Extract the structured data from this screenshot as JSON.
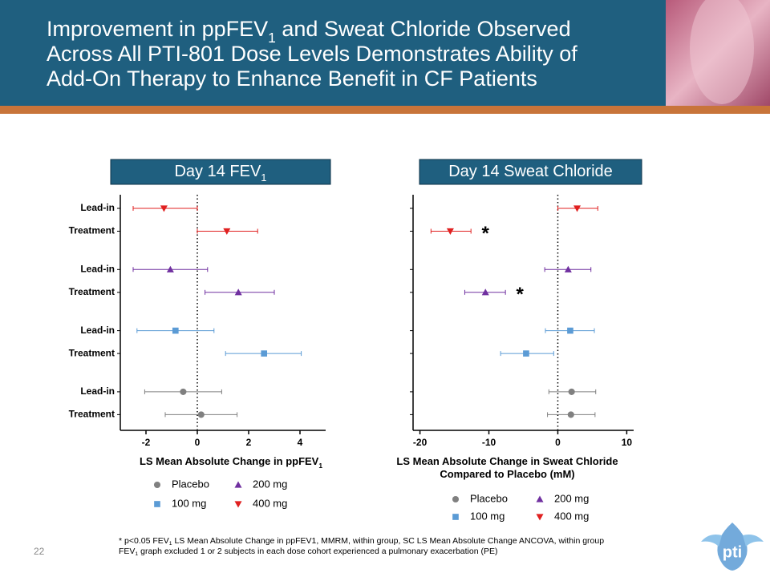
{
  "title": [
    [
      "Improvement in ppFEV",
      "1",
      " and Sweat Chloride Observed"
    ],
    [
      "Across All PTI-801 Dose Levels Demonstrates Ability of"
    ],
    [
      "Add-On Therapy to Enhance Benefit in CF Patients"
    ]
  ],
  "chart_data": [
    {
      "type": "forest",
      "header": [
        "Day 14 FEV",
        "1"
      ],
      "x_label": [
        [
          "LS Mean Absolute Change in ppFEV",
          "1"
        ]
      ],
      "categories": [
        "Lead-in",
        "Treatment",
        "Lead-in",
        "Treatment",
        "Lead-in",
        "Treatment",
        "Lead-in",
        "Treatment"
      ],
      "xlim": [
        -3,
        5
      ],
      "xticks": [
        -2,
        0,
        2,
        4
      ],
      "series": [
        {
          "name": "Placebo",
          "color": "#808080",
          "marker": "circle",
          "values": [
            null,
            null,
            null,
            null,
            null,
            null,
            -0.55,
            0.15
          ],
          "low": [
            null,
            null,
            null,
            null,
            null,
            null,
            -2.05,
            -1.25
          ],
          "high": [
            null,
            null,
            null,
            null,
            null,
            null,
            0.95,
            1.55
          ]
        },
        {
          "name": "100 mg",
          "color": "#5b9bd5",
          "marker": "square",
          "values": [
            null,
            null,
            null,
            null,
            -0.85,
            2.6,
            null,
            null
          ],
          "low": [
            null,
            null,
            null,
            null,
            -2.35,
            1.1,
            null,
            null
          ],
          "high": [
            null,
            null,
            null,
            null,
            0.65,
            4.05,
            null,
            null
          ]
        },
        {
          "name": "200 mg",
          "color": "#7030a0",
          "marker": "triangle-up",
          "values": [
            null,
            null,
            -1.05,
            1.6,
            null,
            null,
            null,
            null
          ],
          "low": [
            null,
            null,
            -2.5,
            0.3,
            null,
            null,
            null,
            null
          ],
          "high": [
            null,
            null,
            0.4,
            3.0,
            null,
            null,
            null,
            null
          ]
        },
        {
          "name": "400 mg",
          "color": "#e02020",
          "marker": "triangle-down",
          "values": [
            -1.3,
            1.15,
            null,
            null,
            null,
            null,
            null,
            null
          ],
          "low": [
            -2.5,
            0.0,
            null,
            null,
            null,
            null,
            null,
            null
          ],
          "high": [
            0.0,
            2.35,
            null,
            null,
            null,
            null,
            null,
            null
          ]
        }
      ]
    },
    {
      "type": "forest",
      "header": [
        "Day 14 Sweat Chloride"
      ],
      "x_label": [
        [
          "LS Mean Absolute Change in Sweat Chloride"
        ],
        [
          "Compared to Placebo (mM)"
        ]
      ],
      "categories": [
        null,
        null,
        null,
        null,
        null,
        null,
        null,
        null
      ],
      "xlim": [
        -21,
        11
      ],
      "xticks": [
        -20,
        -10,
        0,
        10
      ],
      "series": [
        {
          "name": "Placebo",
          "color": "#808080",
          "marker": "circle",
          "values": [
            null,
            null,
            null,
            null,
            null,
            null,
            2.0,
            1.9
          ],
          "low": [
            null,
            null,
            null,
            null,
            null,
            null,
            -1.3,
            -1.5
          ],
          "high": [
            null,
            null,
            null,
            null,
            null,
            null,
            5.5,
            5.4
          ]
        },
        {
          "name": "100 mg",
          "color": "#5b9bd5",
          "marker": "square",
          "values": [
            null,
            null,
            null,
            null,
            1.8,
            -4.6,
            null,
            null
          ],
          "low": [
            null,
            null,
            null,
            null,
            -1.8,
            -8.3,
            null,
            null
          ],
          "high": [
            null,
            null,
            null,
            null,
            5.3,
            -0.6,
            null,
            null
          ]
        },
        {
          "name": "200 mg",
          "color": "#7030a0",
          "marker": "triangle-up",
          "values": [
            null,
            null,
            1.5,
            -10.5,
            null,
            null,
            null,
            null
          ],
          "low": [
            null,
            null,
            -1.9,
            -13.5,
            null,
            null,
            null,
            null
          ],
          "high": [
            null,
            null,
            4.8,
            -7.6,
            null,
            null,
            null,
            null
          ]
        },
        {
          "name": "400 mg",
          "color": "#e02020",
          "marker": "triangle-down",
          "values": [
            2.8,
            -15.6,
            null,
            null,
            null,
            null,
            null,
            null
          ],
          "low": [
            0.0,
            -18.4,
            null,
            null,
            null,
            null,
            null,
            null
          ],
          "high": [
            5.8,
            -12.6,
            null,
            null,
            null,
            null,
            null,
            null
          ]
        }
      ],
      "annotations": [
        {
          "text": "*",
          "series": 3,
          "index": 1
        },
        {
          "text": "*",
          "series": 2,
          "index": 3
        }
      ]
    }
  ],
  "footnotes": [
    [
      "* p<0.05 FEV",
      "1",
      " LS Mean Absolute Change in ppFEV1, MMRM, within group, SC LS Mean Absolute Change ANCOVA, within group"
    ],
    [
      "FEV",
      "1",
      " graph excluded 1 or 2 subjects in each dose cohort experienced a pulmonary exacerbation (PE)"
    ]
  ],
  "page_number": "22",
  "logo": "pti"
}
